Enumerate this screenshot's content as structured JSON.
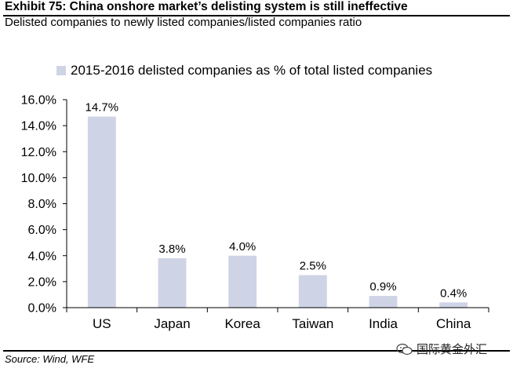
{
  "header": {
    "title": "Exhibit 75: China onshore market’s delisting system is still ineffective",
    "subtitle": "Delisted companies to newly listed companies/listed companies ratio"
  },
  "source": "Source: Wind, WFE",
  "watermark": {
    "text": "国际黄金外汇",
    "icon": "wechat-icon"
  },
  "colors": {
    "bar": "#cfd3e6",
    "axis": "#000000",
    "rule": "#000000"
  },
  "chart_data": {
    "type": "bar",
    "categories": [
      "US",
      "Japan",
      "Korea",
      "Taiwan",
      "India",
      "China"
    ],
    "series": [
      {
        "name": "2015-2016 delisted companies as % of total listed companies",
        "values": [
          14.7,
          3.8,
          4.0,
          2.5,
          0.9,
          0.4
        ]
      }
    ],
    "data_labels": [
      "14.7%",
      "3.8%",
      "4.0%",
      "2.5%",
      "0.9%",
      "0.4%"
    ],
    "yticks": [
      "0.0%",
      "2.0%",
      "4.0%",
      "6.0%",
      "8.0%",
      "10.0%",
      "12.0%",
      "14.0%",
      "16.0%"
    ],
    "ylim": [
      0,
      16
    ],
    "title": "Exhibit 75: China onshore market’s delisting system is still ineffective",
    "xlabel": "",
    "ylabel": "",
    "legend": "top",
    "grid": false
  }
}
